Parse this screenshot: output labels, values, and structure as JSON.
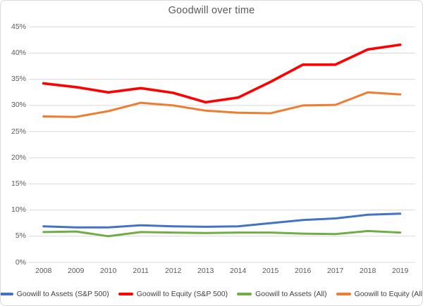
{
  "colors": {
    "background": "#ffffff",
    "border": "#d9d9d9",
    "gridline": "#d9d9d9",
    "axis_line": "#d9d9d9",
    "title_text": "#595959",
    "tick_text": "#595959",
    "legend_text": "#404040"
  },
  "chart_data": {
    "type": "line",
    "title": "Goodwill over time",
    "xlabel": "",
    "ylabel": "",
    "grid": "horizontal",
    "legend_position": "bottom",
    "ylim": [
      0,
      45
    ],
    "x_labels": [
      "2008",
      "2009",
      "2010",
      "2011",
      "2012",
      "2013",
      "2014",
      "2015",
      "2016",
      "2017",
      "2018",
      "2019"
    ],
    "y_ticks": [
      {
        "value": 0,
        "label": "0%"
      },
      {
        "value": 5,
        "label": "5%"
      },
      {
        "value": 10,
        "label": "10%"
      },
      {
        "value": 15,
        "label": "15%"
      },
      {
        "value": 20,
        "label": "20%"
      },
      {
        "value": 25,
        "label": "25%"
      },
      {
        "value": 30,
        "label": "30%"
      },
      {
        "value": 35,
        "label": "35%"
      },
      {
        "value": 40,
        "label": "40%"
      },
      {
        "value": 45,
        "label": "45%"
      }
    ],
    "series": [
      {
        "name": "Goowill to Assets (S&P 500)",
        "color": "#4472C4",
        "values": [
          6.9,
          6.7,
          6.7,
          7.1,
          6.9,
          6.8,
          6.9,
          7.5,
          8.1,
          8.4,
          9.1,
          9.3
        ]
      },
      {
        "name": "Goowill to Equity (S&P 500)",
        "color": "#FF0000",
        "values": [
          34.2,
          33.5,
          32.5,
          33.3,
          32.4,
          30.6,
          31.5,
          34.5,
          37.8,
          37.8,
          40.7,
          41.6
        ]
      },
      {
        "name": "Goowill to Assets (All)",
        "color": "#70AD47",
        "values": [
          5.8,
          5.9,
          5.0,
          5.8,
          5.7,
          5.6,
          5.7,
          5.7,
          5.5,
          5.4,
          6.0,
          5.7
        ]
      },
      {
        "name": "Goowill to Equity (All)",
        "color": "#ED7D31",
        "values": [
          27.9,
          27.8,
          28.9,
          30.5,
          30.0,
          29.0,
          28.6,
          28.5,
          30.0,
          30.1,
          32.5,
          32.1
        ]
      }
    ]
  }
}
